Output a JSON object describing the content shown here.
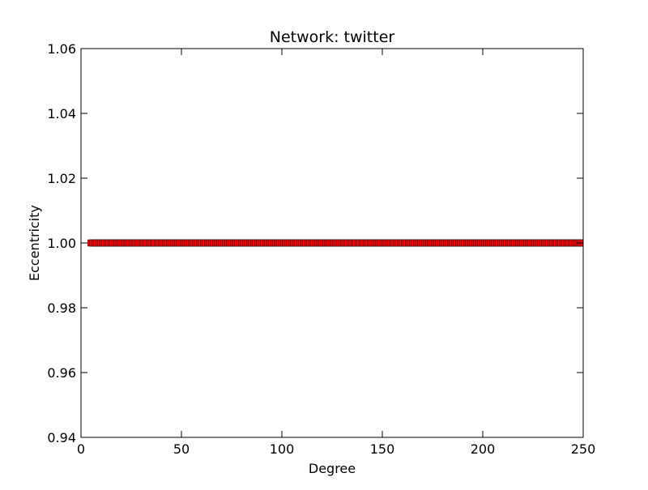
{
  "chart_data": {
    "type": "scatter",
    "title": "Network: twitter",
    "xlabel": "Degree",
    "ylabel": "Eccentricity",
    "xlim": [
      0,
      250
    ],
    "ylim": [
      0.94,
      1.06
    ],
    "x_ticks": [
      "0",
      "50",
      "100",
      "150",
      "200",
      "250"
    ],
    "y_ticks": [
      "0.94",
      "0.96",
      "0.98",
      "1.00",
      "1.02",
      "1.04",
      "1.06"
    ],
    "grid": false,
    "marker": "square",
    "marker_color": "#ff0000",
    "marker_edge_color": "#000000",
    "series": [
      {
        "x_range": [
          5,
          250
        ],
        "x_step": 1,
        "y": 1.0
      }
    ]
  }
}
